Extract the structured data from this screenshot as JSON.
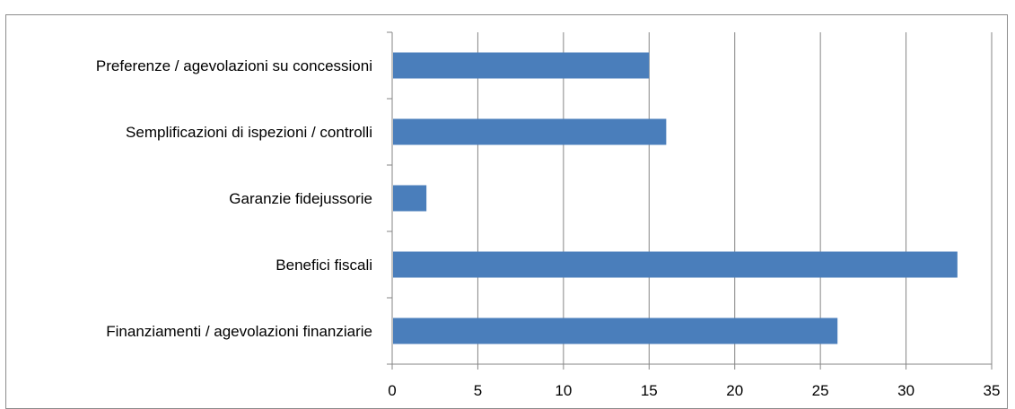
{
  "chart_data": {
    "type": "bar",
    "orientation": "horizontal",
    "categories": [
      "Preferenze / agevolazioni su concessioni",
      "Semplificazioni di ispezioni / controlli",
      "Garanzie fidejussorie",
      "Benefici fiscali",
      "Finanziamenti / agevolazioni finanziarie"
    ],
    "values": [
      15,
      16,
      2,
      33,
      26
    ],
    "xlim": [
      0,
      35
    ],
    "x_ticks": [
      "0",
      "5",
      "10",
      "15",
      "20",
      "25",
      "30",
      "35"
    ],
    "grid": "vertical",
    "legend": "none",
    "bar_color": "#4a7ebb",
    "grid_color": "#868686",
    "title": "",
    "xlabel": "",
    "ylabel": ""
  }
}
